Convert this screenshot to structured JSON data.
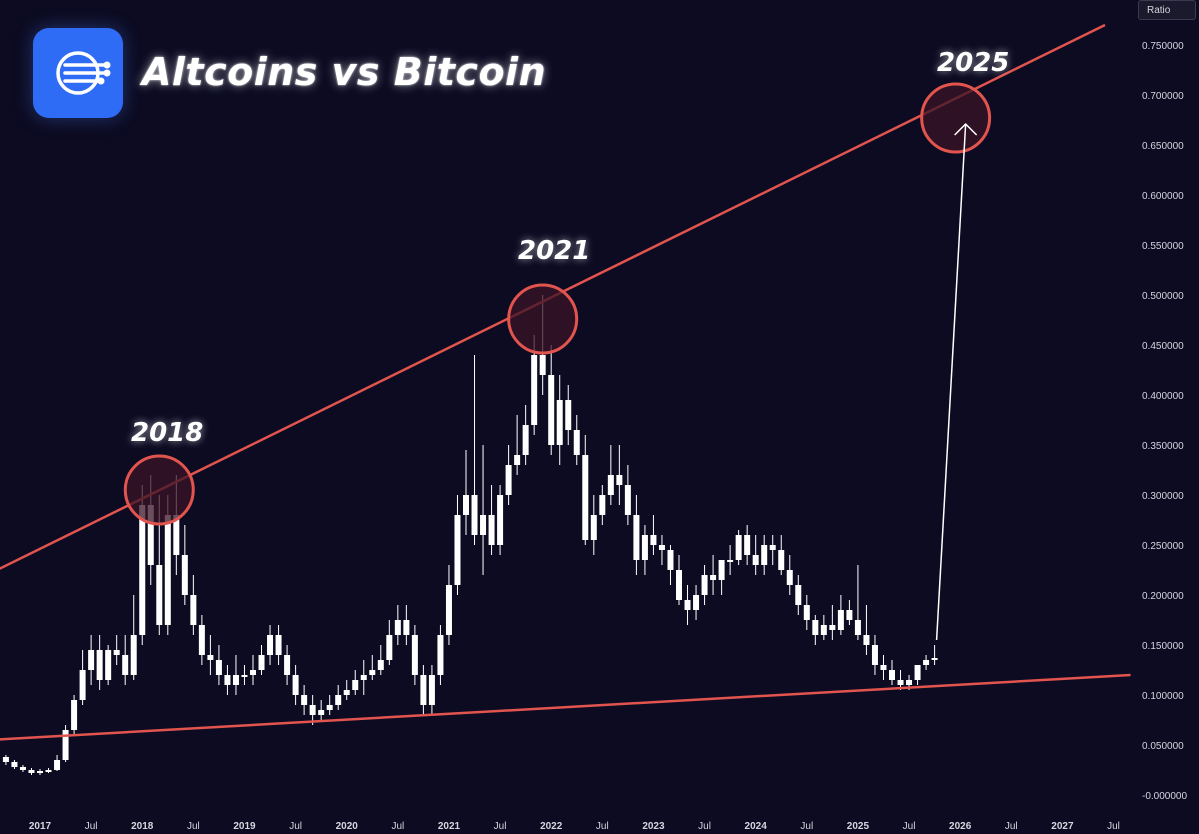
{
  "header": {
    "title": "Altcoins vs Bitcoin",
    "logo_icon": "network-lines-icon",
    "brand_color": "#2f6cf5"
  },
  "axis_badge": "Ratio",
  "annotations": [
    {
      "label": "2018",
      "date": "2018-03"
    },
    {
      "label": "2021",
      "date": "2021-12"
    },
    {
      "label": "2025",
      "date": "2025-12"
    }
  ],
  "colors": {
    "background": "#0c0b22",
    "candle": "#ffffff",
    "trendline": "#e2544e",
    "circle_fill": "#3a1426",
    "arrow": "#ffffff",
    "axis_text": "#d6d6e0"
  },
  "chart_data": {
    "type": "candlestick",
    "title": "Altcoins vs Bitcoin",
    "ylabel": "Ratio",
    "xlabel": "",
    "ylim": [
      -0.01,
      0.78
    ],
    "y_ticks": [
      "-0.000000",
      "0.050000",
      "0.100000",
      "0.150000",
      "0.200000",
      "0.250000",
      "0.300000",
      "0.350000",
      "0.400000",
      "0.450000",
      "0.500000",
      "0.550000",
      "0.600000",
      "0.650000",
      "0.700000",
      "0.750000"
    ],
    "x_ticks": [
      {
        "label": "2017",
        "date": "2017-01"
      },
      {
        "label": "Jul",
        "date": "2017-07"
      },
      {
        "label": "2018",
        "date": "2018-01"
      },
      {
        "label": "Jul",
        "date": "2018-07"
      },
      {
        "label": "2019",
        "date": "2019-01"
      },
      {
        "label": "Jul",
        "date": "2019-07"
      },
      {
        "label": "2020",
        "date": "2020-01"
      },
      {
        "label": "Jul",
        "date": "2020-07"
      },
      {
        "label": "2021",
        "date": "2021-01"
      },
      {
        "label": "Jul",
        "date": "2021-07"
      },
      {
        "label": "2022",
        "date": "2022-01"
      },
      {
        "label": "Jul",
        "date": "2022-07"
      },
      {
        "label": "2023",
        "date": "2023-01"
      },
      {
        "label": "Jul",
        "date": "2023-07"
      },
      {
        "label": "2024",
        "date": "2024-01"
      },
      {
        "label": "Jul",
        "date": "2024-07"
      },
      {
        "label": "2025",
        "date": "2025-01"
      },
      {
        "label": "Jul",
        "date": "2025-07"
      },
      {
        "label": "2026",
        "date": "2026-01"
      },
      {
        "label": "Jul",
        "date": "2026-07"
      },
      {
        "label": "2027",
        "date": "2027-01"
      },
      {
        "label": "Jul",
        "date": "2027-07"
      }
    ],
    "series": [
      {
        "dates": [
          "2016-09",
          "2016-10",
          "2016-11",
          "2016-12",
          "2017-01",
          "2017-02",
          "2017-03",
          "2017-04",
          "2017-05",
          "2017-06",
          "2017-07",
          "2017-08",
          "2017-09",
          "2017-10",
          "2017-11",
          "2017-12",
          "2018-01",
          "2018-02",
          "2018-03",
          "2018-04",
          "2018-05",
          "2018-06",
          "2018-07",
          "2018-08",
          "2018-09",
          "2018-10",
          "2018-11",
          "2018-12",
          "2019-01",
          "2019-02",
          "2019-03",
          "2019-04",
          "2019-05",
          "2019-06",
          "2019-07",
          "2019-08",
          "2019-09",
          "2019-10",
          "2019-11",
          "2019-12",
          "2020-01",
          "2020-02",
          "2020-03",
          "2020-04",
          "2020-05",
          "2020-06",
          "2020-07",
          "2020-08",
          "2020-09",
          "2020-10",
          "2020-11",
          "2020-12",
          "2021-01",
          "2021-02",
          "2021-03",
          "2021-04",
          "2021-05",
          "2021-06",
          "2021-07",
          "2021-08",
          "2021-09",
          "2021-10",
          "2021-11",
          "2021-12",
          "2022-01",
          "2022-02",
          "2022-03",
          "2022-04",
          "2022-05",
          "2022-06",
          "2022-07",
          "2022-08",
          "2022-09",
          "2022-10",
          "2022-11",
          "2022-12",
          "2023-01",
          "2023-02",
          "2023-03",
          "2023-04",
          "2023-05",
          "2023-06",
          "2023-07",
          "2023-08",
          "2023-09",
          "2023-10",
          "2023-11",
          "2023-12",
          "2024-01",
          "2024-02",
          "2024-03",
          "2024-04",
          "2024-05",
          "2024-06",
          "2024-07",
          "2024-08",
          "2024-09",
          "2024-10",
          "2024-11",
          "2024-12",
          "2025-01",
          "2025-02",
          "2025-03",
          "2025-04",
          "2025-05",
          "2025-06",
          "2025-07",
          "2025-08",
          "2025-09",
          "2025-10"
        ],
        "open": [
          0.038,
          0.033,
          0.028,
          0.025,
          0.022,
          0.024,
          0.025,
          0.035,
          0.065,
          0.095,
          0.125,
          0.145,
          0.115,
          0.145,
          0.14,
          0.12,
          0.16,
          0.29,
          0.23,
          0.17,
          0.28,
          0.24,
          0.2,
          0.17,
          0.14,
          0.135,
          0.12,
          0.11,
          0.12,
          0.12,
          0.125,
          0.14,
          0.16,
          0.14,
          0.12,
          0.1,
          0.09,
          0.08,
          0.085,
          0.09,
          0.1,
          0.105,
          0.115,
          0.12,
          0.125,
          0.135,
          0.16,
          0.175,
          0.16,
          0.12,
          0.09,
          0.12,
          0.16,
          0.21,
          0.28,
          0.3,
          0.26,
          0.28,
          0.25,
          0.3,
          0.33,
          0.34,
          0.37,
          0.44,
          0.42,
          0.35,
          0.395,
          0.365,
          0.34,
          0.255,
          0.28,
          0.3,
          0.32,
          0.31,
          0.28,
          0.235,
          0.26,
          0.25,
          0.245,
          0.225,
          0.195,
          0.185,
          0.2,
          0.22,
          0.215,
          0.235,
          0.235,
          0.26,
          0.24,
          0.23,
          0.25,
          0.245,
          0.225,
          0.21,
          0.19,
          0.175,
          0.16,
          0.17,
          0.165,
          0.185,
          0.175,
          0.16,
          0.15,
          0.13,
          0.125,
          0.115,
          0.11,
          0.115,
          0.13,
          0.135
        ],
        "close": [
          0.033,
          0.028,
          0.025,
          0.022,
          0.024,
          0.025,
          0.035,
          0.065,
          0.095,
          0.125,
          0.145,
          0.115,
          0.145,
          0.14,
          0.12,
          0.16,
          0.29,
          0.23,
          0.17,
          0.28,
          0.24,
          0.2,
          0.17,
          0.14,
          0.135,
          0.12,
          0.11,
          0.12,
          0.12,
          0.125,
          0.14,
          0.16,
          0.14,
          0.12,
          0.1,
          0.09,
          0.08,
          0.085,
          0.09,
          0.1,
          0.105,
          0.115,
          0.12,
          0.125,
          0.135,
          0.16,
          0.175,
          0.16,
          0.12,
          0.09,
          0.12,
          0.16,
          0.21,
          0.28,
          0.3,
          0.26,
          0.28,
          0.25,
          0.3,
          0.33,
          0.34,
          0.37,
          0.44,
          0.42,
          0.35,
          0.395,
          0.365,
          0.34,
          0.255,
          0.28,
          0.3,
          0.32,
          0.31,
          0.28,
          0.235,
          0.26,
          0.25,
          0.245,
          0.225,
          0.195,
          0.185,
          0.2,
          0.22,
          0.215,
          0.235,
          0.235,
          0.26,
          0.24,
          0.23,
          0.25,
          0.245,
          0.225,
          0.21,
          0.19,
          0.175,
          0.16,
          0.17,
          0.165,
          0.185,
          0.175,
          0.16,
          0.15,
          0.13,
          0.125,
          0.115,
          0.11,
          0.115,
          0.13,
          0.135,
          0.137
        ],
        "high": [
          0.04,
          0.035,
          0.03,
          0.027,
          0.026,
          0.027,
          0.04,
          0.07,
          0.1,
          0.145,
          0.16,
          0.16,
          0.15,
          0.16,
          0.16,
          0.2,
          0.31,
          0.32,
          0.3,
          0.3,
          0.32,
          0.27,
          0.22,
          0.18,
          0.16,
          0.15,
          0.13,
          0.14,
          0.13,
          0.14,
          0.15,
          0.17,
          0.17,
          0.15,
          0.13,
          0.11,
          0.1,
          0.095,
          0.1,
          0.11,
          0.115,
          0.125,
          0.135,
          0.14,
          0.15,
          0.175,
          0.19,
          0.19,
          0.17,
          0.13,
          0.13,
          0.17,
          0.23,
          0.3,
          0.345,
          0.44,
          0.35,
          0.31,
          0.31,
          0.35,
          0.38,
          0.39,
          0.46,
          0.5,
          0.45,
          0.42,
          0.41,
          0.38,
          0.36,
          0.3,
          0.31,
          0.35,
          0.35,
          0.33,
          0.3,
          0.27,
          0.28,
          0.26,
          0.25,
          0.24,
          0.21,
          0.21,
          0.23,
          0.24,
          0.23,
          0.25,
          0.265,
          0.27,
          0.26,
          0.26,
          0.26,
          0.26,
          0.24,
          0.22,
          0.2,
          0.18,
          0.18,
          0.19,
          0.2,
          0.195,
          0.23,
          0.19,
          0.16,
          0.14,
          0.135,
          0.125,
          0.12,
          0.13,
          0.14,
          0.15
        ],
        "low": [
          0.03,
          0.026,
          0.023,
          0.02,
          0.02,
          0.022,
          0.024,
          0.033,
          0.06,
          0.09,
          0.11,
          0.105,
          0.11,
          0.13,
          0.11,
          0.115,
          0.15,
          0.21,
          0.16,
          0.16,
          0.22,
          0.19,
          0.16,
          0.13,
          0.12,
          0.11,
          0.1,
          0.1,
          0.11,
          0.11,
          0.12,
          0.13,
          0.13,
          0.11,
          0.09,
          0.08,
          0.07,
          0.075,
          0.08,
          0.085,
          0.095,
          0.1,
          0.1,
          0.115,
          0.12,
          0.13,
          0.15,
          0.15,
          0.11,
          0.08,
          0.08,
          0.11,
          0.15,
          0.2,
          0.26,
          0.25,
          0.22,
          0.24,
          0.24,
          0.29,
          0.32,
          0.33,
          0.36,
          0.4,
          0.34,
          0.33,
          0.35,
          0.33,
          0.25,
          0.24,
          0.27,
          0.29,
          0.29,
          0.27,
          0.22,
          0.22,
          0.24,
          0.23,
          0.21,
          0.19,
          0.17,
          0.175,
          0.19,
          0.2,
          0.2,
          0.22,
          0.23,
          0.23,
          0.22,
          0.22,
          0.23,
          0.22,
          0.2,
          0.18,
          0.165,
          0.15,
          0.155,
          0.155,
          0.16,
          0.17,
          0.155,
          0.14,
          0.12,
          0.115,
          0.11,
          0.105,
          0.105,
          0.11,
          0.125,
          0.13
        ]
      }
    ],
    "trendlines": [
      {
        "name": "",
        "start": {
          "date": "2016-07",
          "value": 0.221
        },
        "end": {
          "date": "2027-06",
          "value": 0.77
        }
      },
      {
        "name": "",
        "start": {
          "date": "2016-07",
          "value": 0.055
        },
        "end": {
          "date": "2027-09",
          "value": 0.12
        }
      }
    ],
    "projection_arrow": {
      "from": {
        "date": "2025-10",
        "value": 0.155
      },
      "to": {
        "date": "2025-12",
        "value": 0.685
      }
    },
    "grid": false,
    "legend": "none"
  }
}
